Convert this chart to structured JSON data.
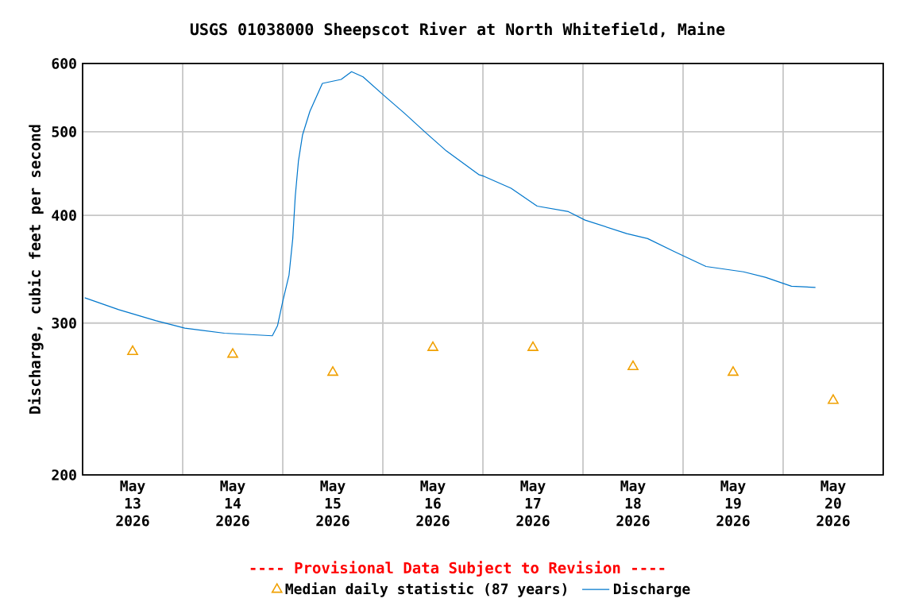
{
  "chart_data": {
    "type": "line",
    "title": "USGS 01038000 Sheepscot River at North Whitefield, Maine",
    "ylabel": "Discharge, cubic feet per second",
    "annotations": [
      "---- Provisional Data Subject to Revision ----"
    ],
    "log": "y",
    "grid": true,
    "legend": "bottom",
    "xlim": [
      "2026-05-13T00:00",
      "2026-05-21T00:00"
    ],
    "xticks": [
      {
        "value": "2026-05-13T12:00",
        "label": "May 13 2026"
      },
      {
        "value": "2026-05-14T12:00",
        "label": "May 14 2026"
      },
      {
        "value": "2026-05-15T12:00",
        "label": "May 15 2026"
      },
      {
        "value": "2026-05-16T12:00",
        "label": "May 16 2026"
      },
      {
        "value": "2026-05-17T12:00",
        "label": "May 17 2026"
      },
      {
        "value": "2026-05-18T12:00",
        "label": "May 18 2026"
      },
      {
        "value": "2026-05-19T12:00",
        "label": "May 19 2026"
      },
      {
        "value": "2026-05-20T12:00",
        "label": "May 20 2026"
      },
      {
        "value": "2026-05-14T00:00",
        "label": null
      },
      {
        "value": "2026-05-15T00:00",
        "label": null
      },
      {
        "value": "2026-05-16T00:00",
        "label": null
      },
      {
        "value": "2026-05-17T00:00",
        "label": null
      },
      {
        "value": "2026-05-18T00:00",
        "label": null
      },
      {
        "value": "2026-05-19T00:00",
        "label": null
      },
      {
        "value": "2026-05-20T00:00",
        "label": null
      }
    ],
    "ylim": [
      200,
      600
    ],
    "yticks": [
      200,
      300,
      400,
      500,
      600
    ],
    "series": [
      {
        "name": "Median daily statistic (87 years)",
        "type": "scatter",
        "marker": "triangle",
        "color": "#f0a000",
        "x": [
          "2026-05-13T12:00",
          "2026-05-14T12:00",
          "2026-05-15T12:00",
          "2026-05-16T12:00",
          "2026-05-17T12:00",
          "2026-05-18T12:00",
          "2026-05-19T12:00",
          "2026-05-20T12:00"
        ],
        "values": [
          278,
          276,
          263,
          281,
          281,
          267,
          263,
          244
        ]
      },
      {
        "name": "Discharge",
        "marker": "none",
        "color": "#0077cc",
        "x": [
          "2026-05-13T00:30",
          "2026-05-13T08:40",
          "2026-05-13T17:30",
          "2026-05-14T00:30",
          "2026-05-14T10:00",
          "2026-05-14T21:30",
          "2026-05-14T22:45",
          "2026-05-15T00:00",
          "2026-05-15T01:30",
          "2026-05-15T02:24",
          "2026-05-15T03:00",
          "2026-05-15T03:45",
          "2026-05-15T04:45",
          "2026-05-15T06:30",
          "2026-05-15T09:30",
          "2026-05-15T14:00",
          "2026-05-15T16:30",
          "2026-05-15T19:15",
          "2026-05-16T00:15",
          "2026-05-16T05:15",
          "2026-05-16T10:15",
          "2026-05-16T15:15",
          "2026-05-16T23:00",
          "2026-05-17T00:15",
          "2026-05-17T06:45",
          "2026-05-17T13:00",
          "2026-05-17T20:30",
          "2026-05-18T00:30",
          "2026-05-18T10:30",
          "2026-05-18T15:30",
          "2026-05-18T22:00",
          "2026-05-19T05:30",
          "2026-05-19T14:30",
          "2026-05-19T19:45",
          "2026-05-20T02:00",
          "2026-05-20T07:45"
        ],
        "values": [
          321,
          311,
          302,
          296,
          292,
          290,
          298,
          318,
          341,
          376,
          421,
          462,
          496,
          528,
          569,
          575,
          587,
          579,
          551,
          525,
          499,
          475,
          446,
          444,
          430,
          410,
          404,
          395,
          381,
          376,
          363,
          349,
          344,
          339,
          331,
          330
        ]
      }
    ]
  }
}
